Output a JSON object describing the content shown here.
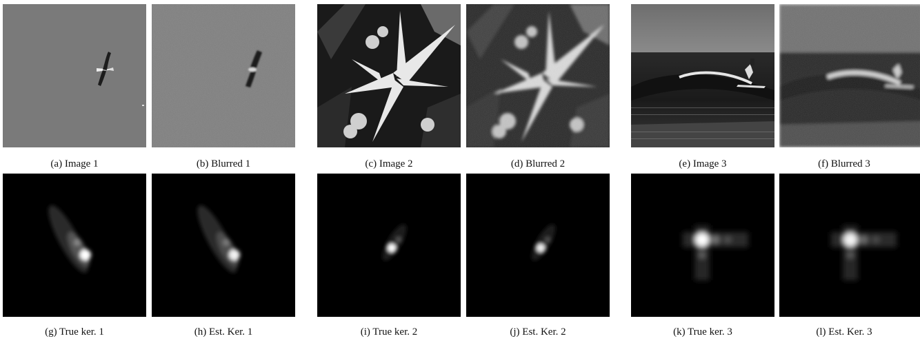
{
  "figure": {
    "panels": [
      {
        "caption": "(a) Image 1",
        "content": "bird-sharp"
      },
      {
        "caption": "(b) Blurred 1",
        "content": "bird-blurred"
      },
      {
        "caption": "(c) Image 2",
        "content": "flowers-sharp"
      },
      {
        "caption": "(d) Blurred 2",
        "content": "flowers-blurred"
      },
      {
        "caption": "(e) Image 3",
        "content": "surfer-sharp"
      },
      {
        "caption": "(f) Blurred 3",
        "content": "surfer-blurred"
      },
      {
        "caption": "(g) True ker. 1",
        "content": "kernel-1-true"
      },
      {
        "caption": "(h) Est. Ker. 1",
        "content": "kernel-1-estimated"
      },
      {
        "caption": "(i) True ker. 2",
        "content": "kernel-2-true"
      },
      {
        "caption": "(j) Est. Ker. 2",
        "content": "kernel-2-estimated"
      },
      {
        "caption": "(k) True ker. 3",
        "content": "kernel-3-true"
      },
      {
        "caption": "(l) Est. Ker. 3",
        "content": "kernel-3-estimated"
      }
    ]
  }
}
